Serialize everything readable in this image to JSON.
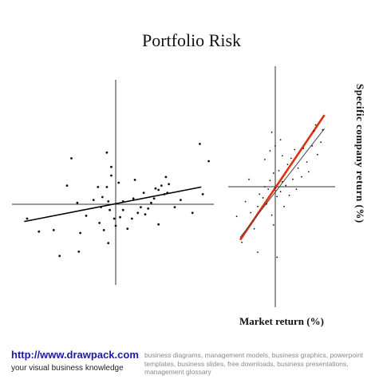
{
  "title": "Portfolio Risk",
  "x_axis_label": "Market return (%)",
  "y_axis_label": "Specific company return (%)",
  "footer": {
    "link_text": "http://www.drawpack.com",
    "tagline": "your visual business knowledge",
    "keywords": "business diagrams, management models, business graphics, powerpoint templates, business slides, free downloads, business presentations, management glossary"
  },
  "colors": {
    "link": "#1a1aa6",
    "steep_regression_line": "#e03010",
    "axes": "#333333",
    "points": "#111111"
  },
  "chart_data": [
    {
      "type": "scatter",
      "description_role": "low-beta scatter",
      "points": [
        [
          -6.0,
          -1.0
        ],
        [
          -5.2,
          -1.9
        ],
        [
          -3.3,
          1.3
        ],
        [
          -4.2,
          -1.8
        ],
        [
          -2.0,
          -0.8
        ],
        [
          -2.6,
          0.1
        ],
        [
          -2.5,
          -3.3
        ],
        [
          -2.4,
          -2.0
        ],
        [
          -0.5,
          -2.7
        ],
        [
          -1.5,
          0.3
        ],
        [
          -1.2,
          1.2
        ],
        [
          -1.0,
          -0.2
        ],
        [
          -0.9,
          0.5
        ],
        [
          -0.6,
          1.2
        ],
        [
          -0.5,
          0.2
        ],
        [
          -0.3,
          2.6
        ],
        [
          -0.4,
          -0.4
        ],
        [
          -0.3,
          2.0
        ],
        [
          -0.1,
          -1.0
        ],
        [
          0.0,
          -1.5
        ],
        [
          0.3,
          -0.9
        ],
        [
          0.5,
          -0.4
        ],
        [
          0.5,
          0.2
        ],
        [
          0.8,
          -1.7
        ],
        [
          1.1,
          -1.0
        ],
        [
          1.2,
          0.4
        ],
        [
          1.5,
          -0.6
        ],
        [
          1.7,
          -0.2
        ],
        [
          1.9,
          0.8
        ],
        [
          2.0,
          -0.7
        ],
        [
          2.2,
          -0.3
        ],
        [
          2.4,
          0.1
        ],
        [
          2.6,
          0.4
        ],
        [
          2.7,
          1.1
        ],
        [
          2.9,
          1.0
        ],
        [
          3.1,
          1.3
        ],
        [
          3.3,
          0.7
        ],
        [
          3.5,
          0.8
        ],
        [
          3.6,
          1.4
        ],
        [
          3.4,
          1.9
        ],
        [
          1.3,
          1.7
        ],
        [
          0.2,
          1.5
        ],
        [
          -0.6,
          3.6
        ],
        [
          -1.1,
          -1.3
        ],
        [
          -0.8,
          -1.8
        ],
        [
          4.4,
          0.3
        ],
        [
          2.9,
          -1.4
        ],
        [
          -3.8,
          -3.6
        ],
        [
          4.0,
          -0.2
        ],
        [
          5.9,
          0.7
        ],
        [
          5.2,
          -0.6
        ],
        [
          6.3,
          3.0
        ],
        [
          5.7,
          4.2
        ],
        [
          -3.0,
          3.2
        ]
      ],
      "trend_line": {
        "x": [
          -6.2,
          5.8
        ],
        "y": [
          -1.2,
          1.2
        ]
      }
    },
    {
      "type": "scatter",
      "description_role": "high-beta scatter",
      "points": [
        [
          -2.2,
          -2.4
        ],
        [
          -1.9,
          -4.5
        ],
        [
          -1.7,
          -1.2
        ],
        [
          -1.5,
          0.6
        ],
        [
          -1.4,
          -2.1
        ],
        [
          -1.2,
          -3.4
        ],
        [
          -1.0,
          -1.6
        ],
        [
          -0.9,
          -0.6
        ],
        [
          -0.7,
          -0.9
        ],
        [
          -0.6,
          2.2
        ],
        [
          -0.5,
          -1.4
        ],
        [
          -0.4,
          -0.2
        ],
        [
          -0.3,
          0.5
        ],
        [
          -0.2,
          -2.3
        ],
        [
          -0.1,
          1.1
        ],
        [
          0.0,
          -0.1
        ],
        [
          0.1,
          -0.8
        ],
        [
          0.2,
          1.3
        ],
        [
          0.3,
          -0.4
        ],
        [
          0.4,
          0.4
        ],
        [
          0.5,
          -1.6
        ],
        [
          0.6,
          0.1
        ],
        [
          0.7,
          1.8
        ],
        [
          0.8,
          -0.7
        ],
        [
          0.9,
          2.3
        ],
        [
          1.0,
          0.6
        ],
        [
          1.1,
          3.0
        ],
        [
          1.2,
          -0.2
        ],
        [
          1.3,
          1.5
        ],
        [
          1.5,
          0.8
        ],
        [
          1.6,
          3.1
        ],
        [
          1.8,
          2.0
        ],
        [
          1.9,
          1.2
        ],
        [
          2.1,
          3.3
        ],
        [
          2.2,
          4.5
        ],
        [
          2.3,
          5.0
        ],
        [
          2.4,
          2.6
        ],
        [
          2.6,
          3.6
        ],
        [
          2.7,
          4.6
        ],
        [
          0.0,
          3.3
        ],
        [
          0.3,
          3.8
        ],
        [
          -0.3,
          2.9
        ],
        [
          -0.1,
          -3.1
        ],
        [
          0.1,
          -5.7
        ],
        [
          -0.2,
          4.4
        ],
        [
          0.4,
          2.5
        ],
        [
          -0.6,
          0.0
        ],
        [
          -1.0,
          -5.3
        ]
      ],
      "trend_lines": [
        {
          "x": [
            -2.0,
            2.8
          ],
          "y": [
            -4.3,
            5.8
          ]
        },
        {
          "x": [
            -2.0,
            2.8
          ],
          "y": [
            -4.1,
            4.7
          ]
        }
      ]
    }
  ]
}
